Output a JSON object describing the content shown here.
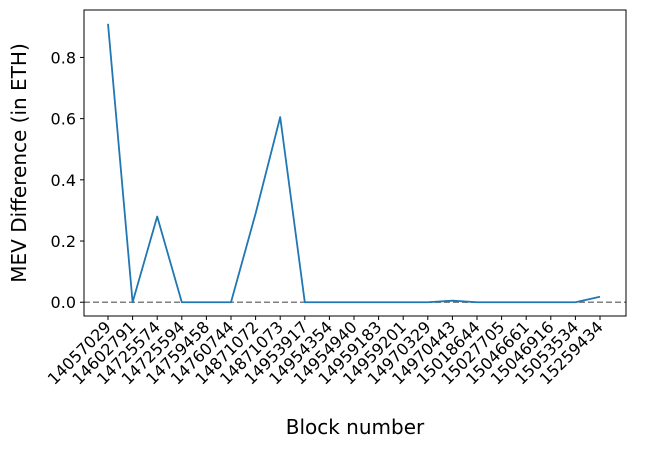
{
  "chart_data": {
    "type": "line",
    "xlabel": "Block number",
    "ylabel": "MEV Difference (in ETH)",
    "categories": [
      "14057029",
      "14602791",
      "14725574",
      "14725594",
      "14759458",
      "14760744",
      "14871072",
      "14871073",
      "14953917",
      "14954354",
      "14954940",
      "14959183",
      "14959201",
      "14970329",
      "14970443",
      "15018644",
      "15027705",
      "15046661",
      "15046916",
      "15053534",
      "15259434"
    ],
    "series": [
      {
        "color": "#1f77b4",
        "values": [
          0.91,
          0.0,
          0.28,
          0.0,
          0.0,
          0.0,
          0.29,
          0.605,
          0.0,
          0.0,
          0.0,
          0.0,
          0.0,
          0.0,
          0.005,
          0.0,
          0.0,
          0.0,
          0.0,
          0.0,
          0.018
        ]
      }
    ],
    "ylim": [
      -0.045,
      0.955
    ],
    "yticks": [
      0.0,
      0.2,
      0.4,
      0.6,
      0.8
    ],
    "ytick_labels": [
      "0.0",
      "0.2",
      "0.4",
      "0.6",
      "0.8"
    ],
    "reference_line": {
      "y": 0.0,
      "style": "dashed",
      "color": "#808080"
    },
    "grid": false,
    "legend": false
  }
}
